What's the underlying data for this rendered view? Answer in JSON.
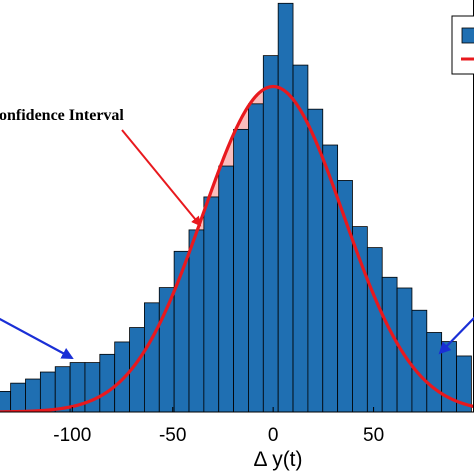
{
  "chart_data": {
    "type": "bar",
    "xlabel": "Δ y(t)",
    "xlim": [
      -136,
      100
    ],
    "ylim": [
      0,
      1.0
    ],
    "x_ticks": [
      "-100",
      "-50",
      "0",
      "50"
    ],
    "x_tick_values": [
      -100,
      -50,
      0,
      50
    ],
    "grid": false,
    "legend_position": "top-right",
    "bin_width": 7.4,
    "series": [
      {
        "kind": "histogram",
        "color": "#1f6fb2",
        "centers": [
          -134.4,
          -127.0,
          -119.6,
          -112.2,
          -104.8,
          -97.4,
          -90.0,
          -82.6,
          -75.2,
          -67.8,
          -60.4,
          -53.0,
          -45.6,
          -38.2,
          -30.8,
          -23.4,
          -16.0,
          -8.6,
          -1.2,
          6.2,
          13.6,
          21.0,
          28.4,
          35.8,
          43.2,
          50.6,
          58.0,
          65.4,
          72.8,
          80.2,
          87.6,
          95.0
        ],
        "values": [
          0.05,
          0.07,
          0.08,
          0.097,
          0.11,
          0.12,
          0.12,
          0.14,
          0.17,
          0.205,
          0.265,
          0.302,
          0.39,
          0.442,
          0.522,
          0.597,
          0.686,
          0.748,
          0.865,
          0.992,
          0.842,
          0.735,
          0.648,
          0.562,
          0.45,
          0.399,
          0.327,
          0.301,
          0.247,
          0.193,
          0.171,
          0.136
        ]
      },
      {
        "kind": "fitted_curve",
        "color": "#e8191e",
        "mean": 0,
        "std": 35,
        "peak": 0.79,
        "confidence_interval": [
          -60,
          60
        ],
        "fill_color": "#f7a8a8"
      }
    ],
    "annotations": [
      {
        "text": "onfidence Interval",
        "arrow_color": "#e8191e"
      },
      {
        "text": "",
        "arrow_color": "#1a2fd6"
      },
      {
        "text": "",
        "arrow_color": "#1a2fd6"
      }
    ]
  }
}
